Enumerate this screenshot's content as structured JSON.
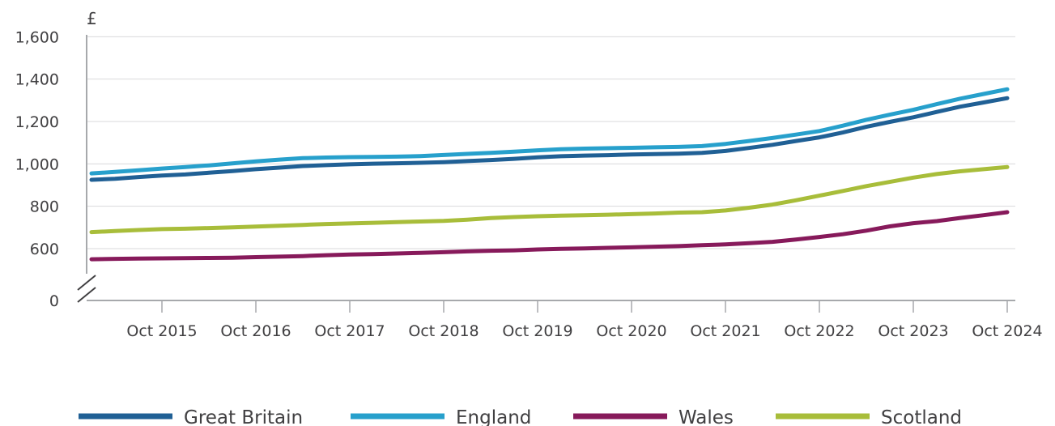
{
  "chart_data": {
    "type": "line",
    "unit_label": "£",
    "y_ticks": [
      {
        "value": 0,
        "label": "0"
      },
      {
        "value": 600,
        "label": "600"
      },
      {
        "value": 800,
        "label": "800"
      },
      {
        "value": 1000,
        "label": "1,000"
      },
      {
        "value": 1200,
        "label": "1,200"
      },
      {
        "value": 1400,
        "label": "1,400"
      },
      {
        "value": 1600,
        "label": "1,600"
      }
    ],
    "y_axis_break": true,
    "ylim": [
      0,
      1600
    ],
    "x_ticks": [
      "Oct 2015",
      "Oct 2016",
      "Oct 2017",
      "Oct 2018",
      "Oct 2019",
      "Oct 2020",
      "Oct 2021",
      "Oct 2022",
      "Oct 2023",
      "Oct 2024"
    ],
    "x": [
      "Jan 2015",
      "Apr 2015",
      "Jul 2015",
      "Oct 2015",
      "Jan 2016",
      "Apr 2016",
      "Jul 2016",
      "Oct 2016",
      "Jan 2017",
      "Apr 2017",
      "Jul 2017",
      "Oct 2017",
      "Jan 2018",
      "Apr 2018",
      "Jul 2018",
      "Oct 2018",
      "Jan 2019",
      "Apr 2019",
      "Jul 2019",
      "Oct 2019",
      "Jan 2020",
      "Apr 2020",
      "Jul 2020",
      "Oct 2020",
      "Jan 2021",
      "Apr 2021",
      "Jul 2021",
      "Oct 2021",
      "Jan 2022",
      "Apr 2022",
      "Jul 2022",
      "Oct 2022",
      "Jan 2023",
      "Apr 2023",
      "Jul 2023",
      "Oct 2023",
      "Jan 2024",
      "Apr 2024",
      "Jul 2024",
      "Oct 2024"
    ],
    "grid": "horizontal",
    "legend_position": "bottom",
    "series": [
      {
        "name": "Great Britain",
        "color": "#206095",
        "values": [
          925,
          930,
          938,
          945,
          950,
          958,
          966,
          975,
          982,
          990,
          994,
          998,
          1001,
          1003,
          1005,
          1008,
          1013,
          1018,
          1024,
          1031,
          1036,
          1039,
          1041,
          1044,
          1046,
          1048,
          1052,
          1061,
          1075,
          1090,
          1108,
          1125,
          1148,
          1175,
          1198,
          1220,
          1245,
          1270,
          1290,
          1310
        ]
      },
      {
        "name": "England",
        "color": "#27a0cc",
        "values": [
          955,
          962,
          970,
          978,
          985,
          993,
          1002,
          1012,
          1020,
          1027,
          1030,
          1032,
          1033,
          1034,
          1037,
          1042,
          1047,
          1052,
          1058,
          1064,
          1069,
          1072,
          1074,
          1076,
          1078,
          1080,
          1084,
          1094,
          1108,
          1122,
          1138,
          1155,
          1180,
          1208,
          1232,
          1255,
          1282,
          1308,
          1330,
          1352
        ]
      },
      {
        "name": "Wales",
        "color": "#871a5b",
        "values": [
          550,
          552,
          553,
          554,
          555,
          556,
          557,
          560,
          562,
          565,
          569,
          572,
          574,
          577,
          580,
          583,
          587,
          590,
          592,
          596,
          599,
          601,
          604,
          606,
          609,
          612,
          616,
          620,
          626,
          632,
          643,
          655,
          668,
          685,
          705,
          720,
          730,
          745,
          758,
          772
        ]
      },
      {
        "name": "Scotland",
        "color": "#a8bd3a",
        "values": [
          678,
          683,
          688,
          692,
          694,
          697,
          700,
          704,
          708,
          712,
          716,
          719,
          722,
          725,
          728,
          731,
          737,
          744,
          749,
          753,
          756,
          758,
          760,
          763,
          766,
          770,
          772,
          780,
          793,
          808,
          828,
          850,
          872,
          895,
          915,
          935,
          952,
          965,
          975,
          985
        ]
      }
    ]
  }
}
